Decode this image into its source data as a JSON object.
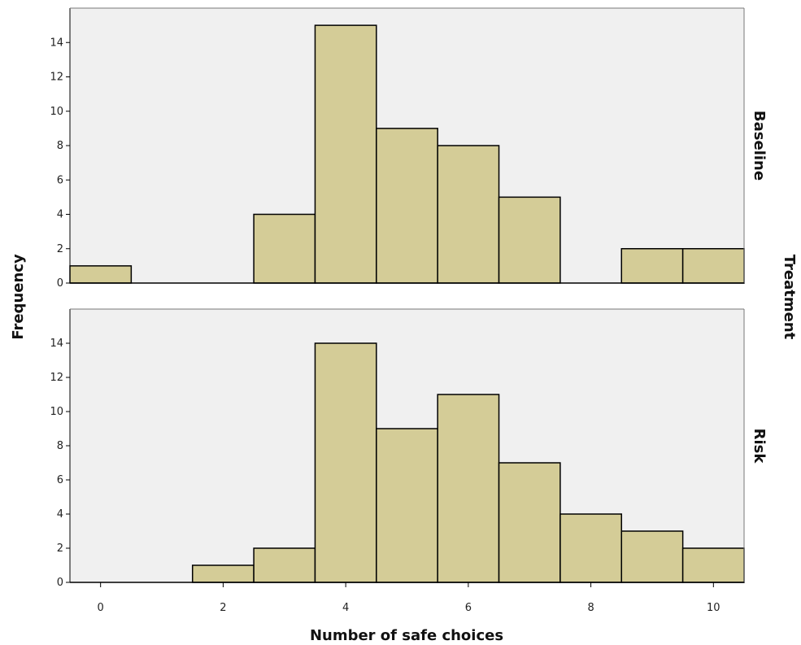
{
  "chart_data": {
    "type": "bar",
    "xlabel": "Number of safe choices",
    "ylabel": "Frequency",
    "facet_label": "Treatment",
    "x_ticks": [
      0,
      2,
      4,
      6,
      8,
      10
    ],
    "y_ticks": [
      0,
      2,
      4,
      6,
      8,
      10,
      12,
      14
    ],
    "xlim": [
      -0.5,
      10.5
    ],
    "ylim": [
      0,
      16
    ],
    "bar_color": "#d4cc97",
    "panel_background": "#f0f0f0",
    "categories": [
      0,
      1,
      2,
      3,
      4,
      5,
      6,
      7,
      8,
      9,
      10
    ],
    "series": [
      {
        "name": "Baseline",
        "values": [
          1,
          0,
          0,
          4,
          15,
          9,
          8,
          5,
          0,
          2,
          2
        ]
      },
      {
        "name": "Risk",
        "values": [
          0,
          0,
          1,
          2,
          14,
          9,
          11,
          7,
          4,
          3,
          2
        ]
      }
    ]
  }
}
